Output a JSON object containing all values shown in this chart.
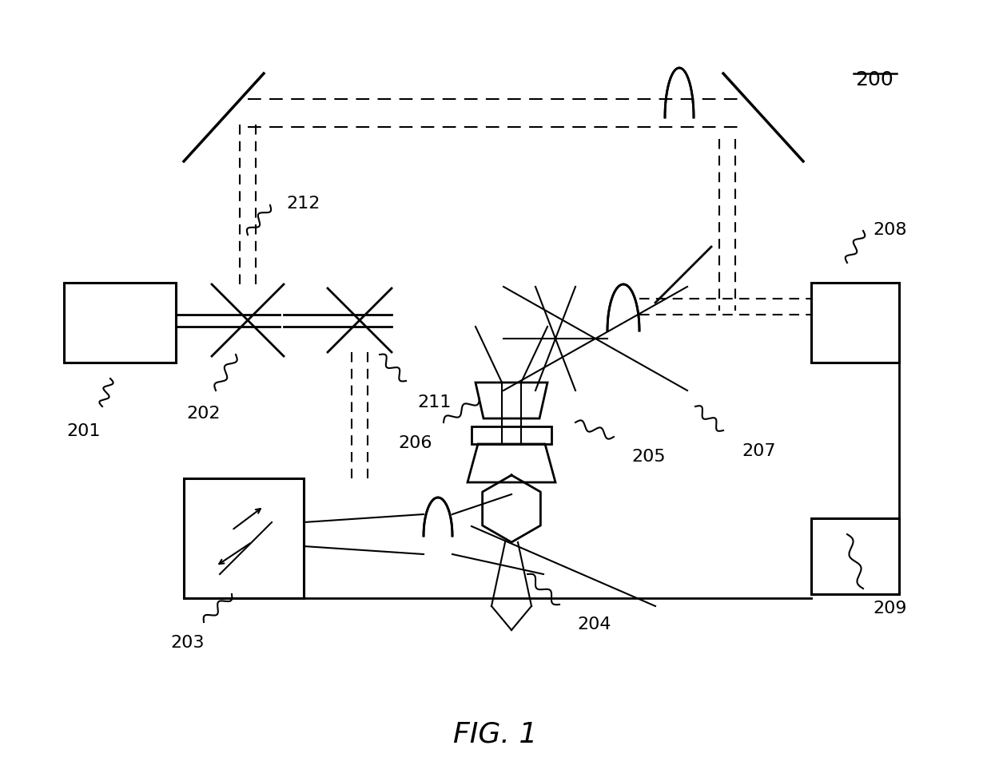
{
  "bg_color": "#ffffff",
  "line_color": "#000000",
  "fig_label": "FIG. 1",
  "label_200": "200",
  "lw": 2.0,
  "lw_thin": 1.5,
  "lw_thick": 2.5
}
